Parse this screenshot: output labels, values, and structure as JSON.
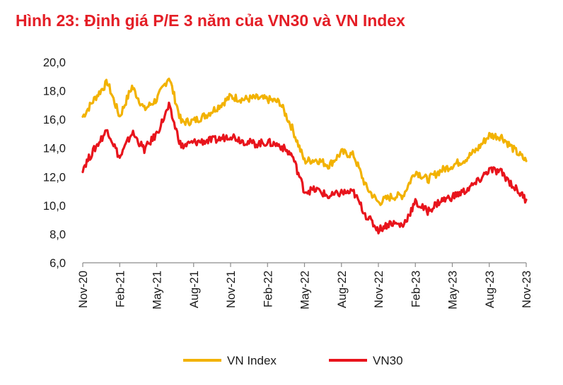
{
  "chart_data": {
    "type": "line",
    "title": "Hình 23: Định giá P/E 3 năm của VN30 và VN Index",
    "xlabel": "",
    "ylabel": "",
    "x_tick_labels": [
      "Nov-20",
      "Feb-21",
      "May-21",
      "Aug-21",
      "Nov-21",
      "Feb-22",
      "May-22",
      "Aug-22",
      "Nov-22",
      "Feb-23",
      "May-23",
      "Aug-23",
      "Nov-23"
    ],
    "y_tick_labels": [
      "6,0",
      "8,0",
      "10,0",
      "12,0",
      "14,0",
      "16,0",
      "18,0",
      "20,0"
    ],
    "ylim": [
      6,
      20
    ],
    "grid": false,
    "legend_position": "bottom",
    "x": [
      "2020-11",
      "2020-12",
      "2021-01",
      "2021-02",
      "2021-03",
      "2021-04",
      "2021-05",
      "2021-06",
      "2021-07",
      "2021-08",
      "2021-09",
      "2021-10",
      "2021-11",
      "2021-12",
      "2022-01",
      "2022-02",
      "2022-03",
      "2022-04",
      "2022-05",
      "2022-06",
      "2022-07",
      "2022-08",
      "2022-09",
      "2022-10",
      "2022-11",
      "2022-12",
      "2023-01",
      "2023-02",
      "2023-03",
      "2023-04",
      "2023-05",
      "2023-06",
      "2023-07",
      "2023-08",
      "2023-09",
      "2023-10",
      "2023-11"
    ],
    "series": [
      {
        "name": "VN Index",
        "color": "#f2b200",
        "values": [
          16.2,
          17.5,
          18.6,
          16.2,
          18.3,
          16.7,
          17.4,
          19.0,
          15.8,
          15.9,
          16.3,
          16.9,
          17.6,
          17.4,
          17.5,
          17.4,
          17.2,
          15.4,
          13.1,
          13.2,
          12.8,
          13.7,
          13.5,
          11.3,
          10.2,
          10.6,
          10.7,
          12.4,
          11.8,
          12.4,
          12.8,
          13.2,
          13.9,
          14.9,
          14.8,
          13.9,
          13.1
        ]
      },
      {
        "name": "VN30",
        "color": "#e8141c",
        "values": [
          12.6,
          14.0,
          15.3,
          13.3,
          15.1,
          13.9,
          15.0,
          16.9,
          14.1,
          14.4,
          14.5,
          14.6,
          14.9,
          14.5,
          14.3,
          14.4,
          14.2,
          13.5,
          11.0,
          11.1,
          10.6,
          10.9,
          10.9,
          9.3,
          8.3,
          8.8,
          8.6,
          10.2,
          9.6,
          10.3,
          10.6,
          11.0,
          11.6,
          12.5,
          12.3,
          11.3,
          10.4
        ]
      }
    ]
  }
}
